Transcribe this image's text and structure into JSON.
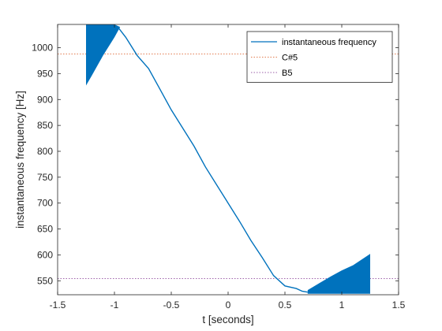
{
  "chart_data": {
    "type": "line",
    "xlabel": "t [seconds]",
    "ylabel": "instantaneous frequency [Hz]",
    "xlim": [
      -1.5,
      1.5
    ],
    "ylim": [
      523,
      1045
    ],
    "xticks": [
      -1.5,
      -1,
      -0.5,
      0,
      0.5,
      1,
      1.5
    ],
    "xtick_labels": [
      "-1.5",
      "-1",
      "-0.5",
      "0",
      "0.5",
      "1",
      "1.5"
    ],
    "yticks": [
      550,
      600,
      650,
      700,
      750,
      800,
      850,
      900,
      950,
      1000
    ],
    "ytick_labels": [
      "550",
      "600",
      "650",
      "700",
      "750",
      "800",
      "850",
      "900",
      "950",
      "1000"
    ],
    "grid": false,
    "legend_position": "top-right",
    "series": [
      {
        "name": "instantaneous frequency",
        "color": "#0072BD",
        "style": "solid",
        "x": [
          -0.97,
          -0.9,
          -0.8,
          -0.7,
          -0.6,
          -0.5,
          -0.4,
          -0.3,
          -0.2,
          -0.1,
          0,
          0.1,
          0.2,
          0.3,
          0.4,
          0.5,
          0.6,
          0.65,
          0.7
        ],
        "y": [
          1040,
          1020,
          985,
          960,
          920,
          880,
          845,
          810,
          770,
          735,
          700,
          665,
          628,
          595,
          560,
          540,
          535,
          530,
          528
        ],
        "oscillating_envelope_left": {
          "x": [
            -1.25,
            -1.2,
            -1.1,
            -1.0,
            -0.95
          ],
          "upper": [
            1045,
            1045,
            1045,
            1045,
            1040
          ],
          "lower": [
            927,
            946,
            985,
            1020,
            1040
          ]
        },
        "oscillating_envelope_right": {
          "x": [
            0.7,
            0.8,
            0.9,
            1.0,
            1.1,
            1.25
          ],
          "upper": [
            532,
            545,
            558,
            570,
            580,
            602
          ],
          "lower": [
            525,
            525,
            525,
            525,
            525,
            525
          ]
        }
      },
      {
        "name": "C#5",
        "color": "#D95319",
        "style": "dotted",
        "y_constant": 987.77
      },
      {
        "name": "B5",
        "color": "#7E2F8E",
        "style": "dotted",
        "y_constant": 554.37
      }
    ]
  }
}
